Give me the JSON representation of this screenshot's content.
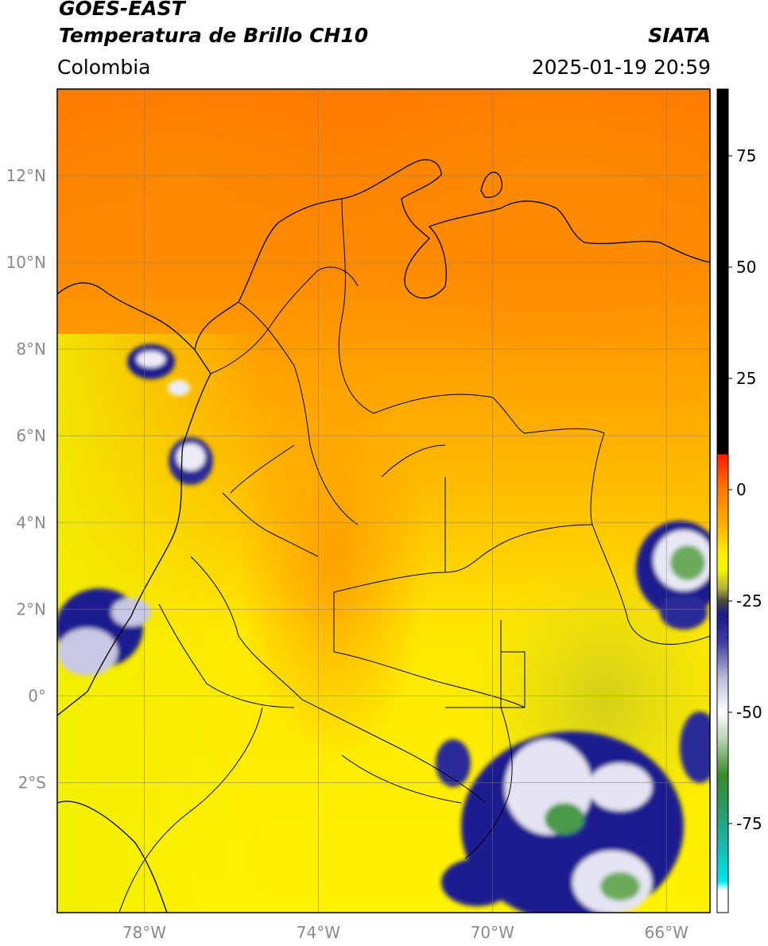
{
  "header": {
    "satellite": "GOES-EAST",
    "product": "Temperatura de Brillo CH10",
    "region": "Colombia",
    "organization": "SIATA",
    "datetime": "2025-01-19 20:59"
  },
  "map": {
    "lon_range": [
      -80,
      -65
    ],
    "lat_range": [
      -5,
      14
    ],
    "grid": true,
    "x_ticks": [
      {
        "lon": -78,
        "label": "78°W"
      },
      {
        "lon": -74,
        "label": "74°W"
      },
      {
        "lon": -70,
        "label": "70°W"
      },
      {
        "lon": -66,
        "label": "66°W"
      }
    ],
    "y_ticks": [
      {
        "lat": 12,
        "label": "12°N"
      },
      {
        "lat": 10,
        "label": "10°N"
      },
      {
        "lat": 8,
        "label": "8°N"
      },
      {
        "lat": 6,
        "label": "6°N"
      },
      {
        "lat": 4,
        "label": "4°N"
      },
      {
        "lat": 2,
        "label": "2°N"
      },
      {
        "lat": 0,
        "label": "0°"
      },
      {
        "lat": -2,
        "label": "2°S"
      }
    ]
  },
  "colorbar": {
    "range": [
      -95,
      90
    ],
    "ticks": [
      {
        "value": 75,
        "label": "75"
      },
      {
        "value": 50,
        "label": "50"
      },
      {
        "value": 25,
        "label": "25"
      },
      {
        "value": 0,
        "label": "0"
      },
      {
        "value": -25,
        "label": "-25"
      },
      {
        "value": -50,
        "label": "-50"
      },
      {
        "value": -75,
        "label": "-75"
      }
    ],
    "stops": [
      {
        "value": 90,
        "color": "#000000"
      },
      {
        "value": 8,
        "color": "#000000"
      },
      {
        "value": 7.9,
        "color": "#ff1a00"
      },
      {
        "value": 0,
        "color": "#ff7a00"
      },
      {
        "value": -8,
        "color": "#ffb000"
      },
      {
        "value": -14,
        "color": "#ffee00"
      },
      {
        "value": -18,
        "color": "#f4f400"
      },
      {
        "value": -22,
        "color": "#b5b53a"
      },
      {
        "value": -25,
        "color": "#4a4a3a"
      },
      {
        "value": -28,
        "color": "#1a1a8a"
      },
      {
        "value": -34,
        "color": "#3a3aa0"
      },
      {
        "value": -42,
        "color": "#b8b8d8"
      },
      {
        "value": -50,
        "color": "#ffffff"
      },
      {
        "value": -56,
        "color": "#b8d4b0"
      },
      {
        "value": -64,
        "color": "#3a8a2a"
      },
      {
        "value": -72,
        "color": "#2a9a6a"
      },
      {
        "value": -80,
        "color": "#1ab8b0"
      },
      {
        "value": -88,
        "color": "#00e8e8"
      },
      {
        "value": -90,
        "color": "#ffffff"
      },
      {
        "value": -95,
        "color": "#ffffff"
      }
    ]
  },
  "colors": {
    "background_warm": "#ff7f00",
    "mid": "#ffaa00",
    "yellow": "#ffee00",
    "cold_blue": "#1a1a90",
    "cold_white": "#ececf6",
    "cold_green": "#4a9a4a"
  }
}
